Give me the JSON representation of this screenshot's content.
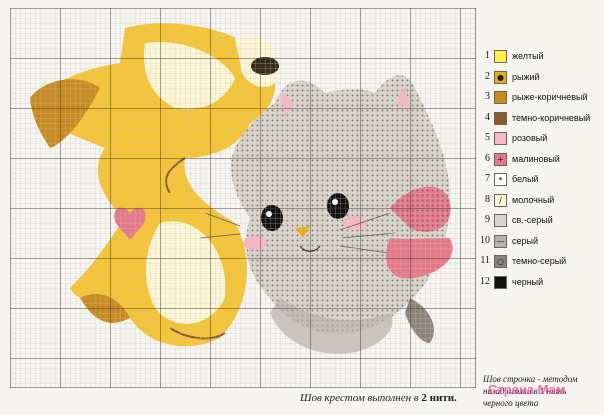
{
  "colors": {
    "grid_minor": "#b9b9b9",
    "grid_major": "#444444",
    "paper": "#f7f5f0"
  },
  "legend": [
    {
      "num": "1",
      "name": "желтый",
      "color": "#fff04a",
      "symbol": ""
    },
    {
      "num": "2",
      "name": "рыжий",
      "color": "#f0a916",
      "symbol": "●"
    },
    {
      "num": "3",
      "name": "рыже-коричневый",
      "color": "#c98a1e",
      "symbol": ""
    },
    {
      "num": "4",
      "name": "темно-коричневый",
      "color": "#8b5a2b",
      "symbol": ""
    },
    {
      "num": "5",
      "name": "розовый",
      "color": "#f7b7c4",
      "symbol": ""
    },
    {
      "num": "6",
      "name": "малиновый",
      "color": "#e6788a",
      "symbol": "+"
    },
    {
      "num": "7",
      "name": "белый",
      "color": "#ffffff",
      "symbol": "•"
    },
    {
      "num": "8",
      "name": "молочный",
      "color": "#fff6d6",
      "symbol": "/"
    },
    {
      "num": "9",
      "name": "св.-серый",
      "color": "#dcd6cc",
      "symbol": ""
    },
    {
      "num": "10",
      "name": "серый",
      "color": "#b8b1a6",
      "symbol": "—"
    },
    {
      "num": "11",
      "name": "темно-серый",
      "color": "#8c8478",
      "symbol": "○"
    },
    {
      "num": "12",
      "name": "черный",
      "color": "#111111",
      "symbol": ""
    }
  ],
  "footer": {
    "main_prefix": "Шов крестом выполнен в ",
    "main_bold": "2 нити.",
    "side_line1": "Шов строчка - методом",
    "side_line2": "назад иголка в 1 нить",
    "side_line3": "черного цвета"
  },
  "watermark": "Страна Мам"
}
